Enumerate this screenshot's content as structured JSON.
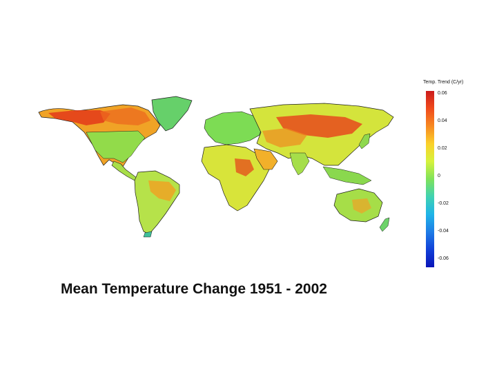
{
  "map": {
    "caption": "Mean Temperature Change 1951 - 2002",
    "projection": "equirectangular world map",
    "colors": {
      "warm_high": "#e33a1a",
      "warm_mid": "#f0a326",
      "neutral": "#e6e33a",
      "cool": "#64d24a",
      "cold": "#1faa9a",
      "border": "#1a1a1a"
    }
  },
  "legend": {
    "title": "Temp. Trend (C/yr)",
    "ticks": [
      "0.06",
      "0.04",
      "0.02",
      "0",
      "-0.02",
      "-0.04",
      "-0.06"
    ],
    "gradient_stops": [
      "#cc1c1c",
      "#f04b1c",
      "#f78a21",
      "#fbd12a",
      "#d6f23c",
      "#7fe25a",
      "#40d2b2",
      "#1fb4e8",
      "#1e7ce6",
      "#1040d8",
      "#0a14b8"
    ]
  }
}
